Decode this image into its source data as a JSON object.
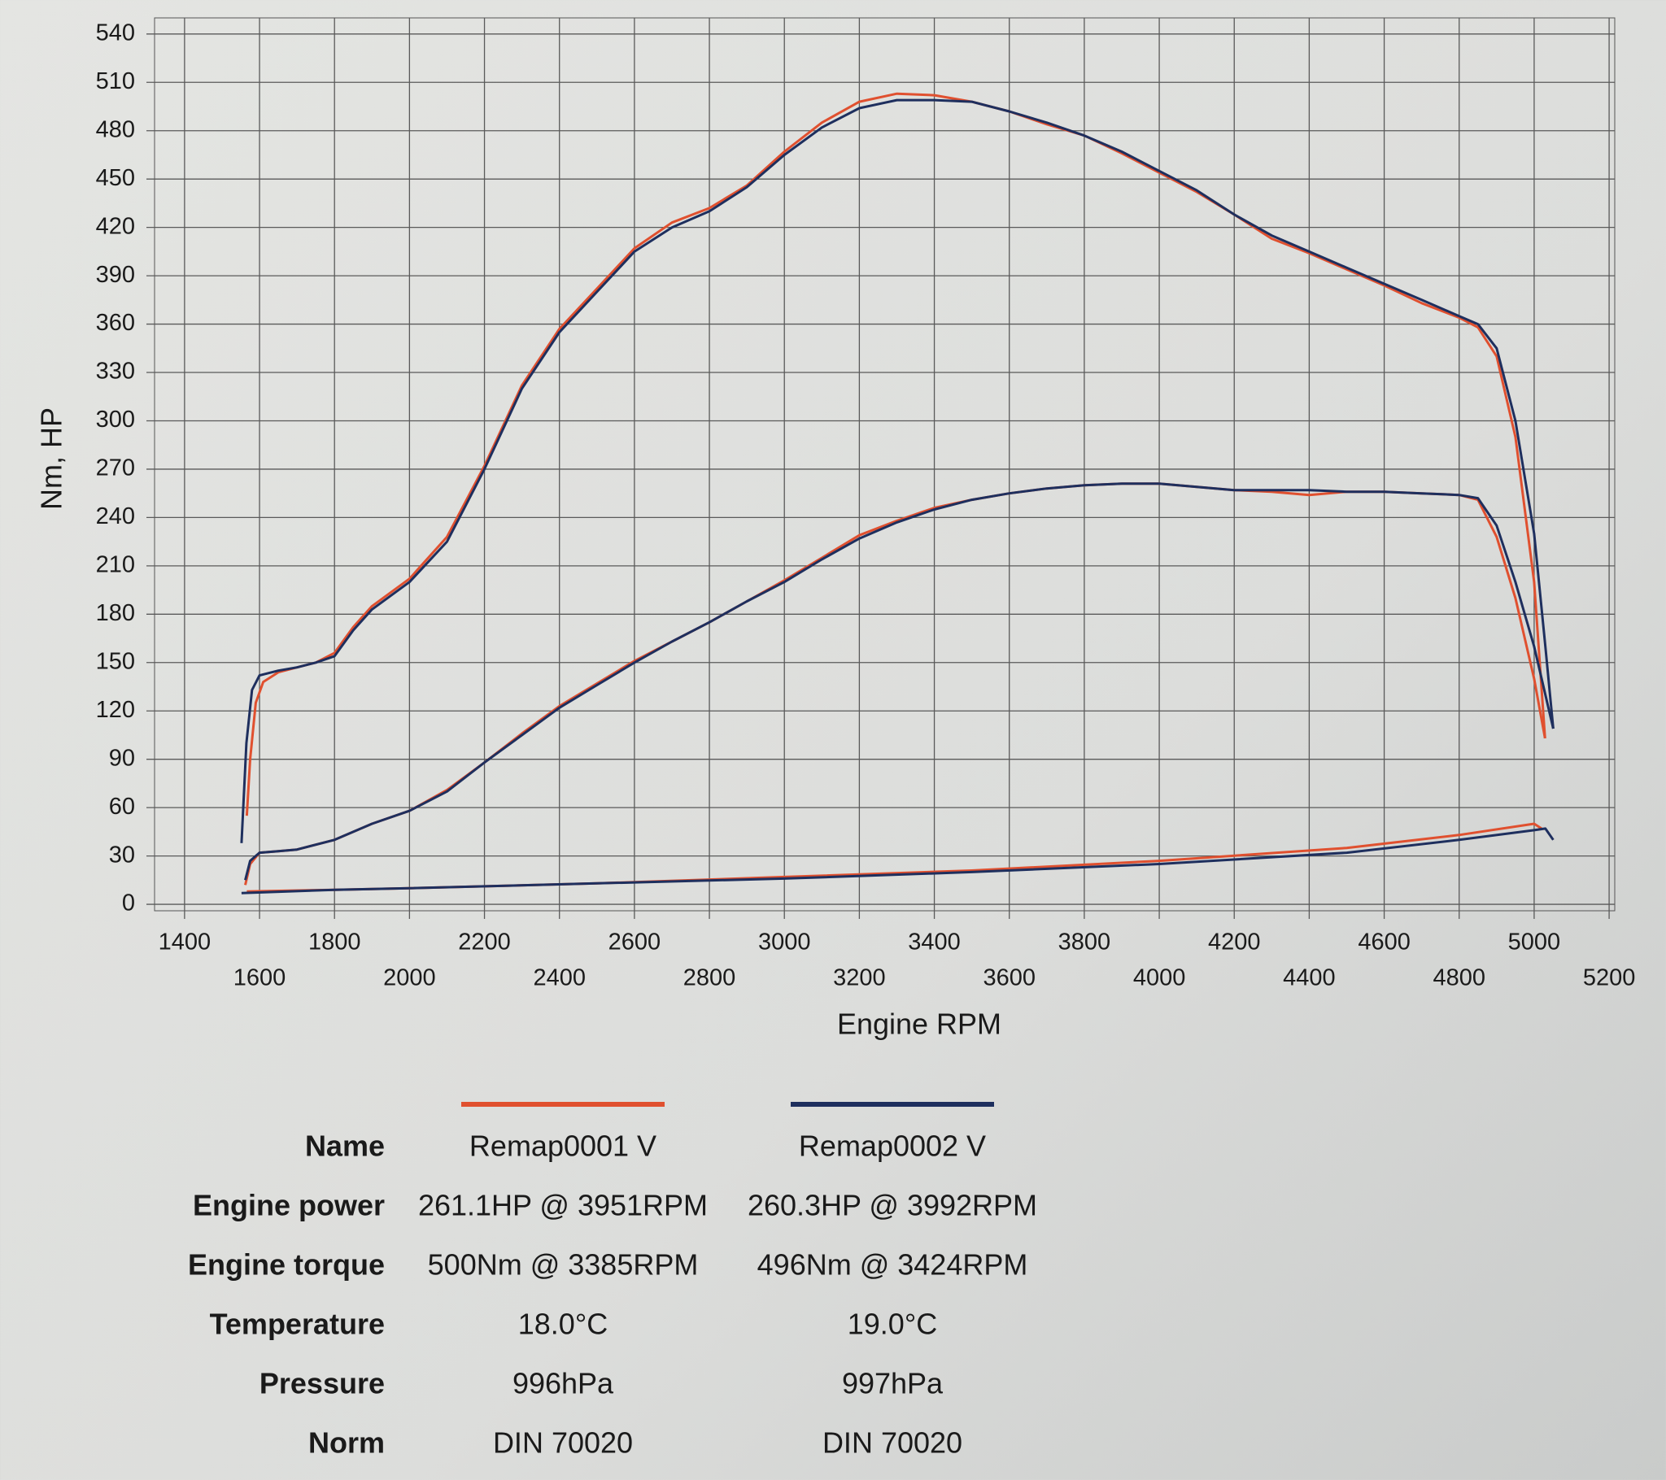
{
  "chart_data": {
    "type": "line",
    "x_label": "Engine RPM",
    "y_label": "Nm, HP",
    "xlim": [
      1320,
      5215
    ],
    "xticks": [
      1400,
      1600,
      1800,
      2000,
      2200,
      2400,
      2600,
      2800,
      3000,
      3200,
      3400,
      3600,
      3800,
      4000,
      4200,
      4400,
      4600,
      4800,
      5000,
      5200
    ],
    "ylim": [
      -4,
      550
    ],
    "yticks": [
      0,
      30,
      60,
      90,
      120,
      150,
      180,
      210,
      240,
      270,
      300,
      330,
      360,
      390,
      420,
      450,
      480,
      510,
      540
    ],
    "grid": true,
    "series": [
      {
        "color": "#e0502f",
        "x": [
          1566,
          1575,
          1590,
          1610,
          1650,
          1700,
          1750,
          1800,
          1850,
          1900,
          2000,
          2100,
          2200,
          2300,
          2400,
          2500,
          2600,
          2700,
          2800,
          2900,
          3000,
          3100,
          3200,
          3300,
          3400,
          3500,
          3600,
          3700,
          3800,
          3900,
          4000,
          4100,
          4200,
          4300,
          4400,
          4500,
          4600,
          4700,
          4800,
          4850,
          4900,
          4950,
          5000,
          5015,
          5029
        ],
        "values": [
          55,
          90,
          125,
          138,
          144,
          147,
          150,
          156,
          172,
          185,
          202,
          228,
          272,
          322,
          357,
          382,
          407,
          423,
          432,
          446,
          467,
          485,
          498,
          503,
          502,
          498,
          492,
          484,
          477,
          466,
          454,
          442,
          428,
          413,
          404,
          394,
          384,
          373,
          364,
          358,
          340,
          290,
          200,
          150,
          103
        ]
      },
      {
        "color": "#1e2f5e",
        "x": [
          1552,
          1565,
          1580,
          1600,
          1650,
          1700,
          1750,
          1800,
          1850,
          1900,
          2000,
          2100,
          2200,
          2300,
          2400,
          2500,
          2600,
          2700,
          2800,
          2900,
          3000,
          3100,
          3200,
          3300,
          3400,
          3500,
          3600,
          3700,
          3800,
          3900,
          4000,
          4100,
          4200,
          4300,
          4400,
          4500,
          4600,
          4700,
          4800,
          4850,
          4900,
          4950,
          5000,
          5030,
          5051
        ],
        "values": [
          38,
          100,
          133,
          142,
          145,
          147,
          150,
          154,
          170,
          183,
          200,
          225,
          270,
          320,
          355,
          380,
          405,
          420,
          430,
          445,
          465,
          482,
          494,
          499,
          499,
          498,
          492,
          485,
          477,
          467,
          455,
          443,
          428,
          415,
          405,
          395,
          385,
          375,
          365,
          360,
          345,
          300,
          230,
          160,
          109
        ]
      },
      {
        "color": "#e0502f",
        "x": [
          1562,
          1575,
          1600,
          1650,
          1700,
          1800,
          1900,
          2000,
          2100,
          2200,
          2300,
          2400,
          2500,
          2600,
          2700,
          2800,
          2900,
          3000,
          3100,
          3200,
          3300,
          3400,
          3500,
          3600,
          3700,
          3800,
          3900,
          4000,
          4100,
          4200,
          4300,
          4400,
          4500,
          4600,
          4700,
          4800,
          4850,
          4900,
          4950,
          5000,
          5029
        ],
        "values": [
          12,
          25,
          32,
          33,
          34,
          40,
          50,
          58,
          71,
          88,
          106,
          123,
          137,
          151,
          163,
          175,
          188,
          201,
          215,
          229,
          238,
          246,
          251,
          255,
          258,
          260,
          261,
          261,
          259,
          257,
          256,
          254,
          256,
          256,
          255,
          254,
          251,
          228,
          190,
          140,
          103
        ]
      },
      {
        "color": "#1e2f5e",
        "x": [
          1562,
          1575,
          1600,
          1650,
          1700,
          1800,
          1900,
          2000,
          2100,
          2200,
          2300,
          2400,
          2500,
          2600,
          2700,
          2800,
          2900,
          3000,
          3100,
          3200,
          3300,
          3400,
          3500,
          3600,
          3700,
          3800,
          3900,
          4000,
          4100,
          4200,
          4300,
          4400,
          4500,
          4600,
          4700,
          4800,
          4850,
          4900,
          4950,
          5000,
          5051
        ],
        "values": [
          15,
          27,
          32,
          33,
          34,
          40,
          50,
          58,
          70,
          88,
          105,
          122,
          136,
          150,
          163,
          175,
          188,
          200,
          214,
          227,
          237,
          245,
          251,
          255,
          258,
          260,
          261,
          261,
          259,
          257,
          257,
          257,
          256,
          256,
          255,
          254,
          252,
          235,
          200,
          160,
          109
        ]
      },
      {
        "color": "#e0502f",
        "x": [
          1566,
          1800,
          2000,
          2500,
          3000,
          3500,
          4000,
          4500,
          4800,
          5000,
          5020
        ],
        "values": [
          8,
          9,
          10,
          13,
          17,
          21,
          27,
          35,
          43,
          50,
          47
        ]
      },
      {
        "color": "#1e2f5e",
        "x": [
          1552,
          1800,
          2000,
          2500,
          3000,
          3500,
          4000,
          4500,
          4800,
          5000,
          5030,
          5051
        ],
        "values": [
          7,
          9,
          10,
          13,
          16,
          20,
          25,
          32,
          40,
          46,
          47,
          40
        ]
      }
    ]
  },
  "table": {
    "row_labels": [
      "Name",
      "Engine power",
      "Engine torque",
      "Temperature",
      "Pressure",
      "Norm"
    ],
    "columns": [
      {
        "color": "#e0502f",
        "cells": [
          "Remap0001 V",
          "261.1HP @  3951RPM",
          "500Nm @ 3385RPM",
          "18.0°C",
          "996hPa",
          "DIN 70020"
        ]
      },
      {
        "color": "#1e2f5e",
        "cells": [
          "Remap0002 V",
          "260.3HP @  3992RPM",
          "496Nm @ 3424RPM",
          "19.0°C",
          "997hPa",
          "DIN 70020"
        ]
      }
    ]
  }
}
